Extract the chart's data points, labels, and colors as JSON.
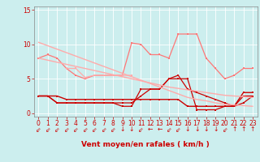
{
  "x": [
    0,
    1,
    2,
    3,
    4,
    5,
    6,
    7,
    8,
    9,
    10,
    11,
    12,
    13,
    14,
    15,
    16,
    17,
    18,
    19,
    20,
    21,
    22,
    23
  ],
  "series": [
    {
      "name": "dark_flat_high",
      "color": "#cc0000",
      "linewidth": 1.0,
      "marker": "s",
      "markersize": 1.8,
      "y": [
        2.5,
        2.5,
        2.5,
        2.0,
        2.0,
        2.0,
        2.0,
        2.0,
        2.0,
        2.0,
        2.0,
        2.0,
        2.0,
        2.0,
        2.0,
        2.0,
        1.0,
        1.0,
        1.0,
        1.0,
        1.0,
        1.0,
        3.0,
        3.0
      ]
    },
    {
      "name": "dark_variable",
      "color": "#cc0000",
      "linewidth": 0.9,
      "marker": "s",
      "markersize": 1.8,
      "y": [
        2.5,
        2.5,
        1.5,
        1.5,
        1.5,
        1.5,
        1.5,
        1.5,
        1.5,
        1.0,
        1.0,
        3.5,
        3.5,
        3.5,
        5.0,
        5.0,
        5.0,
        0.5,
        0.5,
        0.5,
        1.0,
        1.0,
        2.5,
        2.5
      ]
    },
    {
      "name": "dark_peaks",
      "color": "#cc0000",
      "linewidth": 0.9,
      "marker": "s",
      "markersize": 1.8,
      "y": [
        2.5,
        2.5,
        1.5,
        1.5,
        1.5,
        1.5,
        1.5,
        1.5,
        1.5,
        1.5,
        1.5,
        2.5,
        3.5,
        3.5,
        5.0,
        5.5,
        3.5,
        3.0,
        2.5,
        2.0,
        1.5,
        1.0,
        1.5,
        2.5
      ]
    },
    {
      "name": "medium_pink_peaks",
      "color": "#ff7777",
      "linewidth": 0.9,
      "marker": "s",
      "markersize": 1.8,
      "y": [
        8.0,
        8.5,
        8.0,
        6.5,
        5.5,
        5.0,
        5.5,
        5.5,
        5.5,
        5.5,
        10.2,
        10.0,
        8.5,
        8.5,
        8.0,
        11.5,
        11.5,
        11.5,
        8.0,
        6.5,
        5.0,
        5.5,
        6.5,
        6.5
      ]
    },
    {
      "name": "light_decreasing1",
      "color": "#ffaaaa",
      "linewidth": 1.0,
      "marker": null,
      "markersize": 0,
      "y": [
        10.3,
        9.8,
        9.3,
        8.8,
        8.3,
        7.8,
        7.3,
        6.8,
        6.3,
        5.8,
        5.3,
        4.8,
        4.3,
        3.8,
        3.3,
        2.8,
        2.3,
        2.0,
        1.8,
        1.5,
        1.3,
        1.2,
        1.1,
        1.0
      ]
    },
    {
      "name": "light_partial",
      "color": "#ffaaaa",
      "linewidth": 0.9,
      "marker": "s",
      "markersize": 1.8,
      "y": [
        null,
        null,
        null,
        6.5,
        6.5,
        5.2,
        5.5,
        5.5,
        5.5,
        5.5,
        5.5,
        null,
        null,
        null,
        null,
        null,
        null,
        null,
        null,
        null,
        null,
        null,
        null,
        null
      ]
    },
    {
      "name": "light_decreasing2",
      "color": "#ffaaaa",
      "linewidth": 1.0,
      "marker": null,
      "markersize": 0,
      "y": [
        8.0,
        7.7,
        7.4,
        7.1,
        6.8,
        6.5,
        6.2,
        5.9,
        5.6,
        5.3,
        5.0,
        4.7,
        4.4,
        4.1,
        3.8,
        3.6,
        3.4,
        3.2,
        3.0,
        2.8,
        2.6,
        2.5,
        2.4,
        2.3
      ]
    }
  ],
  "arrow_symbols": [
    "⇙",
    "⇙",
    "⇙",
    "⇙",
    "⇙",
    "⇙",
    "⇙",
    "⇙",
    "⇙",
    "↓",
    "↓",
    "⇙",
    "←",
    "←",
    "⇙",
    "⇙",
    "↓",
    "↓",
    "↓",
    "↓",
    "⇙",
    "↑",
    "↑",
    "↑"
  ],
  "xlim": [
    -0.5,
    23.5
  ],
  "ylim": [
    -0.5,
    15.5
  ],
  "yticks": [
    0,
    5,
    10,
    15
  ],
  "xticks": [
    0,
    1,
    2,
    3,
    4,
    5,
    6,
    7,
    8,
    9,
    10,
    11,
    12,
    13,
    14,
    15,
    16,
    17,
    18,
    19,
    20,
    21,
    22,
    23
  ],
  "xlabel": "Vent moyen/en rafales ( km/h )",
  "xlabel_color": "#cc0000",
  "xlabel_fontsize": 6.5,
  "tick_color": "#cc0000",
  "tick_fontsize": 5.5,
  "background_color": "#cceeee",
  "grid_color": "#ffffff",
  "grid_linewidth": 0.6,
  "arrow_color": "#cc0000",
  "arrow_fontsize": 5.5
}
